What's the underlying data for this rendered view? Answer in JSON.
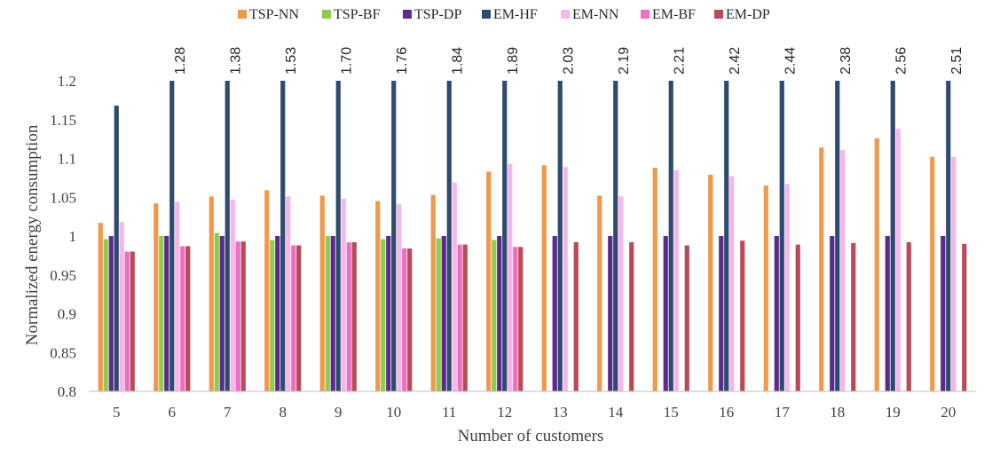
{
  "chart_data": {
    "type": "bar",
    "title": "",
    "xlabel": "Number of customers",
    "ylabel": "Normalized energy consumption",
    "ylim": [
      0.8,
      1.2
    ],
    "yticks": [
      "0.8",
      "0.85",
      "0.9",
      "0.95",
      "1",
      "1.05",
      "1.1",
      "1.15",
      "1.2"
    ],
    "grid": false,
    "legend_position": "top",
    "categories": [
      "5",
      "6",
      "7",
      "8",
      "9",
      "10",
      "11",
      "12",
      "13",
      "14",
      "15",
      "16",
      "17",
      "18",
      "19",
      "20"
    ],
    "overflow_labels": [
      null,
      "1.28",
      "1.38",
      "1.53",
      "1.70",
      "1.76",
      "1.84",
      "1.89",
      "2.03",
      "2.19",
      "2.21",
      "2.42",
      "2.44",
      "2.38",
      "2.56",
      "2.51"
    ],
    "series": [
      {
        "name": "TSP-NN",
        "color": "#F0994A",
        "values": [
          1.017,
          1.042,
          1.051,
          1.059,
          1.052,
          1.045,
          1.053,
          1.083,
          1.091,
          1.052,
          1.088,
          1.079,
          1.065,
          1.114,
          1.126,
          1.102
        ]
      },
      {
        "name": "TSP-BF",
        "color": "#8FCB4E",
        "values": [
          0.996,
          1.0,
          1.004,
          0.995,
          1.0,
          0.996,
          0.997,
          0.995,
          null,
          null,
          null,
          null,
          null,
          null,
          null,
          null
        ]
      },
      {
        "name": "TSP-DP",
        "color": "#5B2C8E",
        "values": [
          1.0,
          1.0,
          1.0,
          1.0,
          1.0,
          1.0,
          1.0,
          1.0,
          1.0,
          1.0,
          1.0,
          1.0,
          1.0,
          1.0,
          1.0,
          1.0
        ]
      },
      {
        "name": "EM-HF",
        "color": "#2E4B6F",
        "values": [
          1.168,
          1.28,
          1.38,
          1.53,
          1.7,
          1.76,
          1.84,
          1.89,
          2.03,
          2.19,
          2.21,
          2.42,
          2.44,
          2.38,
          2.56,
          2.51
        ]
      },
      {
        "name": "EM-NN",
        "color": "#F7B6E8",
        "values": [
          1.018,
          1.044,
          1.047,
          1.051,
          1.048,
          1.041,
          1.069,
          1.093,
          1.089,
          1.051,
          1.085,
          1.077,
          1.067,
          1.111,
          1.138,
          1.102
        ]
      },
      {
        "name": "EM-BF",
        "color": "#EE6FC0",
        "values": [
          0.98,
          0.987,
          0.993,
          0.988,
          0.992,
          0.984,
          0.989,
          0.986,
          null,
          null,
          null,
          null,
          null,
          null,
          null,
          null
        ]
      },
      {
        "name": "EM-DP",
        "color": "#B94A56",
        "values": [
          0.98,
          0.987,
          0.993,
          0.988,
          0.992,
          0.984,
          0.989,
          0.986,
          0.992,
          0.992,
          0.988,
          0.994,
          0.989,
          0.991,
          0.992,
          0.99
        ]
      }
    ]
  }
}
